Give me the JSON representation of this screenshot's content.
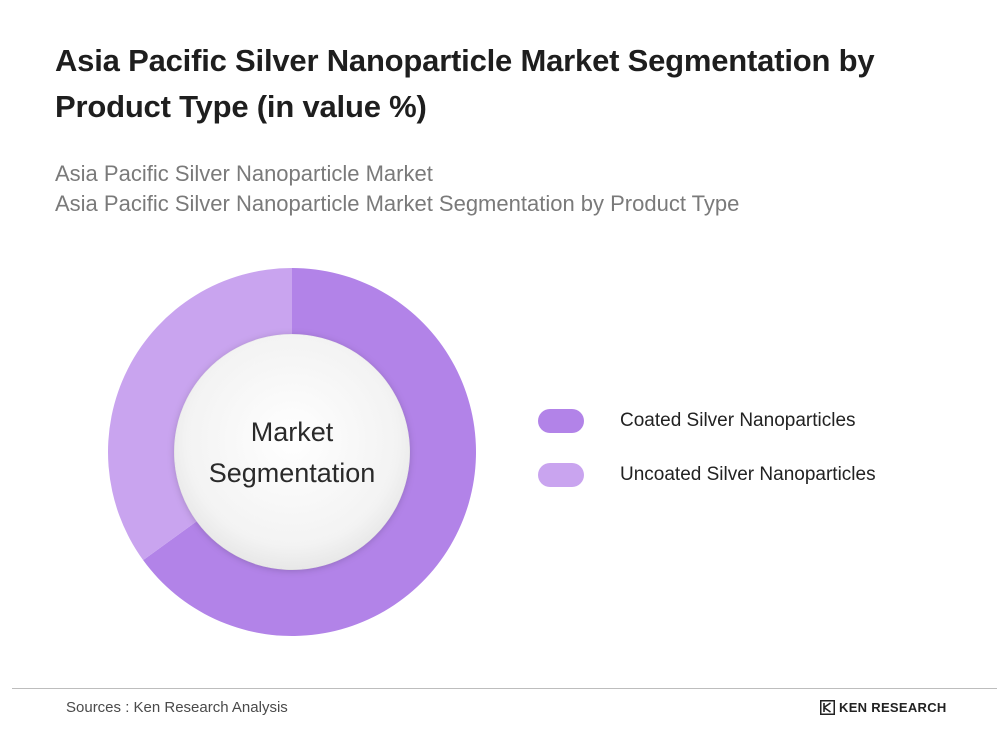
{
  "title": "Asia Pacific Silver Nanoparticle Market Segmentation by Product Type (in value %)",
  "subtitle_1": "Asia Pacific Silver Nanoparticle Market",
  "subtitle_2": "Asia Pacific Silver Nanoparticle Market Segmentation by Product Type",
  "chart_data": {
    "type": "pie",
    "variant": "donut",
    "center_label_line1": "Market",
    "center_label_line2": "Segmentation",
    "categories": [
      "Coated Silver Nanoparticles",
      "Uncoated Silver Nanoparticles"
    ],
    "values": [
      65,
      35
    ],
    "colors": [
      "#b283e8",
      "#c9a4ef"
    ],
    "legend_position": "right"
  },
  "footer": {
    "source": "Sources : Ken Research Analysis",
    "brand": "KEN RESEARCH"
  }
}
